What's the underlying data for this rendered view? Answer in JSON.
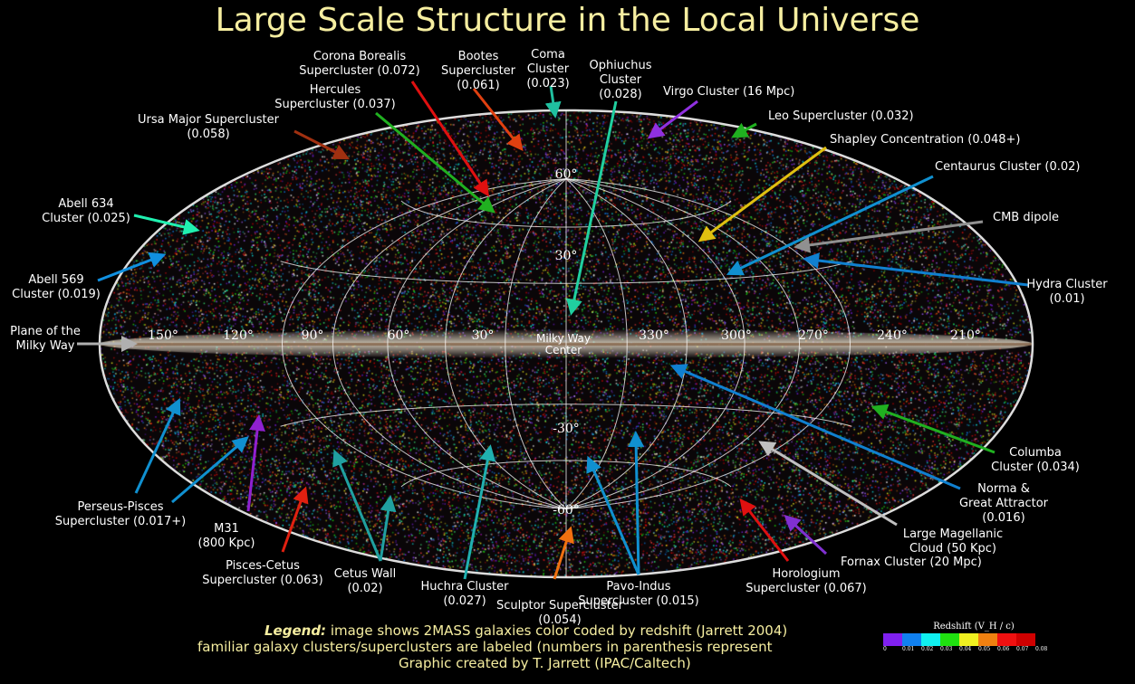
{
  "title": "Large Scale Structure in the Local Universe",
  "center_label": [
    "Milky Way",
    "Center"
  ],
  "longitude_ticks": [
    "150°",
    "120°",
    "90°",
    "60°",
    "30°",
    "330°",
    "300°",
    "270°",
    "240°",
    "210°"
  ],
  "latitude_ticks": [
    "60°",
    "30°",
    "-30°",
    "-60°"
  ],
  "labels": [
    {
      "lines": [
        "Corona Borealis",
        "Supercluster (0.072)"
      ],
      "color": "#e01010"
    },
    {
      "lines": [
        "Bootes",
        "Supercluster",
        "(0.061)"
      ],
      "color": "#e04010"
    },
    {
      "lines": [
        "Coma",
        "Cluster",
        "(0.023)"
      ],
      "color": "#20c0a0"
    },
    {
      "lines": [
        "Ophiuchus",
        "Cluster",
        "(0.028)"
      ],
      "color": "#20d0a0"
    },
    {
      "lines": [
        "Virgo Cluster (16 Mpc)"
      ],
      "color": "#9030e0"
    },
    {
      "lines": [
        "Leo Supercluster (0.032)"
      ],
      "color": "#20b020"
    },
    {
      "lines": [
        "Shapley Concentration (0.048+)"
      ],
      "color": "#e0c010"
    },
    {
      "lines": [
        "Centaurus Cluster (0.02)"
      ],
      "color": "#1090d0"
    },
    {
      "lines": [
        "CMB dipole"
      ],
      "color": "#909090"
    },
    {
      "lines": [
        "Hydra Cluster",
        "(0.01)"
      ],
      "color": "#1080d0"
    },
    {
      "lines": [
        "Hercules",
        "Supercluster (0.037)"
      ],
      "color": "#20b020"
    },
    {
      "lines": [
        "Ursa Major Supercluster",
        "(0.058)"
      ],
      "color": "#a03010"
    },
    {
      "lines": [
        "Abell 634",
        "Cluster (0.025)"
      ],
      "color": "#20f0b0"
    },
    {
      "lines": [
        "Abell 569",
        "Cluster (0.019)"
      ],
      "color": "#1090e0"
    },
    {
      "lines": [
        "Plane of the",
        "Milky Way"
      ],
      "color": "#b0b0b0"
    },
    {
      "lines": [
        "Perseus-Pisces",
        "Supercluster (0.017+)"
      ],
      "color": "#1090d0"
    },
    {
      "lines": [
        "M31",
        "(800 Kpc)"
      ],
      "color": "#9020d0"
    },
    {
      "lines": [
        "Pisces-Cetus",
        "Supercluster (0.063)"
      ],
      "color": "#e02010"
    },
    {
      "lines": [
        "Cetus Wall",
        "(0.02)"
      ],
      "color": "#20a0a0"
    },
    {
      "lines": [
        "Huchra Cluster",
        "(0.027)"
      ],
      "color": "#20b0b0"
    },
    {
      "lines": [
        "Sculptor Supercluster",
        "(0.054)"
      ],
      "color": "#f07010"
    },
    {
      "lines": [
        "Pavo-Indus",
        "Supercluster (0.015)"
      ],
      "color": "#1090d0"
    },
    {
      "lines": [
        "Horologium",
        "Supercluster (0.067)"
      ],
      "color": "#e01010"
    },
    {
      "lines": [
        "Fornax Cluster (20 Mpc)"
      ],
      "color": "#8030d0"
    },
    {
      "lines": [
        "Large Magellanic",
        "Cloud (50 Kpc)"
      ],
      "color": "#c0c0c0"
    },
    {
      "lines": [
        "Norma &",
        "Great Attractor",
        "(0.016)"
      ],
      "color": "#1080d0"
    },
    {
      "lines": [
        "Columba",
        "Cluster (0.034)"
      ],
      "color": "#20b020"
    }
  ],
  "legend": {
    "bold": "Legend:",
    "line1": " image shows 2MASS galaxies color coded by redshift (Jarrett 2004)",
    "line2": "familiar galaxy clusters/superclusters are labeled (numbers in parenthesis represent",
    "line3": "Graphic created by T. Jarrett (IPAC/Caltech)"
  },
  "colorbar": {
    "title": "Redshift (V_H / c)",
    "colors": [
      "#8020f0",
      "#1080f0",
      "#10f0f0",
      "#20e010",
      "#f0f020",
      "#f08010",
      "#f01010",
      "#d00000"
    ],
    "ticks": [
      "0",
      "0.01",
      "0.02",
      "0.03",
      "0.04",
      "0.05",
      "0.06",
      "0.07",
      "0.08"
    ]
  }
}
